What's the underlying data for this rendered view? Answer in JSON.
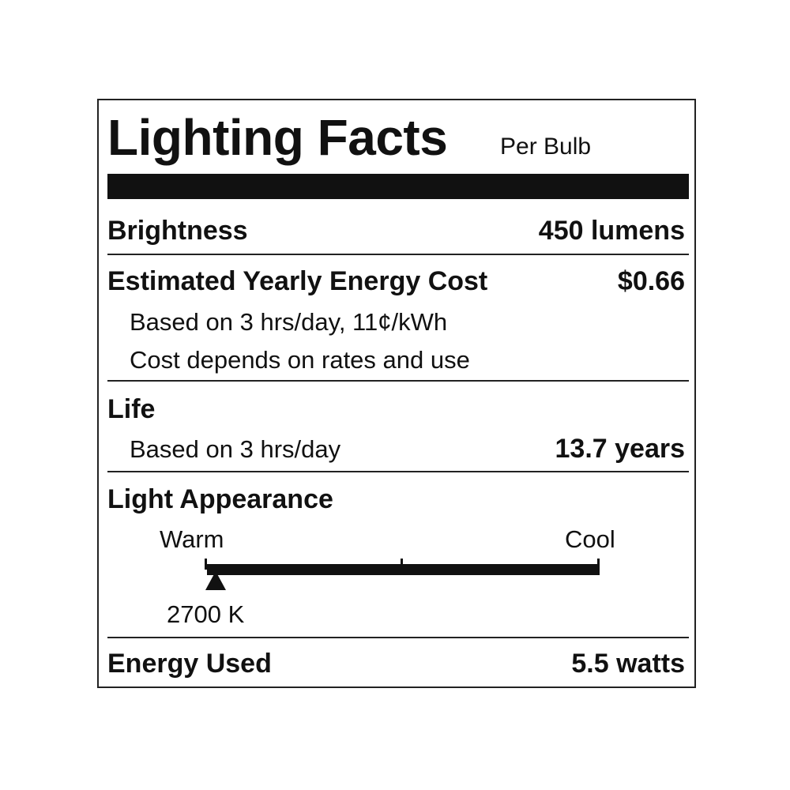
{
  "header": {
    "title": "Lighting Facts",
    "subtitle": "Per Bulb"
  },
  "brightness": {
    "label": "Brightness",
    "value": "450 lumens"
  },
  "cost": {
    "label": "Estimated Yearly Energy Cost",
    "value": "$0.66",
    "note1": "Based on 3 hrs/day, 11¢/kWh",
    "note2": "Cost depends on rates and use"
  },
  "life": {
    "label": "Life",
    "note": "Based on 3 hrs/day",
    "value": "13.7 years"
  },
  "appearance": {
    "label": "Light Appearance",
    "warm": "Warm",
    "cool": "Cool",
    "value": "2700 K",
    "marker_fraction": 0
  },
  "energy": {
    "label": "Energy Used",
    "value": "5.5 watts"
  }
}
